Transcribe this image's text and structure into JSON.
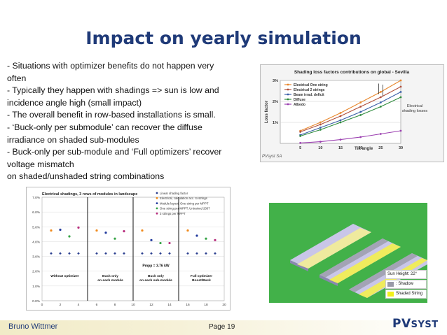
{
  "slide": {
    "title": "Impact on yearly simulation",
    "bullets": [
      "- Situations with optimizer benefits do not happen very",
      "often",
      "- Typically they happen with shadings => sun is low and",
      "incidence angle high (small impact)",
      "- The overall benefit in row-based installations is small.",
      "- ‘Buck-only per submodule’ can recover the diffuse",
      "irradiance on shaded sub-modules",
      "- Buck-only per sub-module and ‘Full optimizers’ recover",
      "voltage mismatch",
      "on shaded/unshaded string combinations"
    ],
    "footer": {
      "author": "Bruno Wittmer",
      "page": "Page 19"
    },
    "logo": {
      "pv": "PV",
      "syst": "SYST"
    }
  },
  "chart_data": [
    {
      "type": "line",
      "title": "Shading loss factors contributions on global - Sevilla",
      "xlabel": "Tilt angle",
      "ylabel": "Loss factor",
      "x": [
        5,
        10,
        15,
        20,
        25,
        30
      ],
      "xlim": [
        0,
        30
      ],
      "ylim": [
        0,
        3
      ],
      "xticks": [
        "5",
        "10",
        "15",
        "20",
        "25",
        "30"
      ],
      "yticks": [
        "1%",
        "2%",
        "3%"
      ],
      "watermark": "PVsyst SA",
      "annotation": [
        "Electrical",
        "shading losses"
      ],
      "series": [
        {
          "name": "Electrical One string",
          "color": "#e8862a",
          "values": [
            0.6,
            1.0,
            1.45,
            1.95,
            2.45,
            3.0
          ]
        },
        {
          "name": "Electrical 2 strings",
          "color": "#b0503c",
          "values": [
            0.55,
            0.9,
            1.3,
            1.75,
            2.2,
            2.7
          ]
        },
        {
          "name": "Beam irrad. deficit",
          "color": "#3a5fa8",
          "values": [
            0.4,
            0.75,
            1.1,
            1.5,
            1.95,
            2.45
          ]
        },
        {
          "name": "Diffuse",
          "color": "#2e8b3c",
          "values": [
            0.35,
            0.65,
            1.0,
            1.35,
            1.75,
            2.2
          ]
        },
        {
          "name": "Albedo",
          "color": "#9b3fb0",
          "values": [
            0.02,
            0.08,
            0.18,
            0.3,
            0.45,
            0.6
          ]
        }
      ]
    },
    {
      "type": "scatter",
      "title": "Electrical shadings, 3 rows of modules  in  landscape",
      "xlim": [
        0,
        20
      ],
      "ylim": [
        0,
        7
      ],
      "xticks": [
        "0",
        "2",
        "4",
        "6",
        "8",
        "10",
        "12",
        "14",
        "16",
        "18",
        "20"
      ],
      "yticks": [
        "0.0%",
        "1.0%",
        "2.0%",
        "3.0%",
        "4.0%",
        "5.0%",
        "6.0%",
        "7.0%"
      ],
      "group_labels": [
        "Without optimizer",
        "Buck only on each module",
        "Buck only on each sub-module",
        "Full optimizer Boost/Buck"
      ],
      "annotation": "Pmpp = 3.76 kW",
      "series": [
        {
          "name": "Linear shading factor",
          "color": "#2a3f8f",
          "x": [
            1,
            2,
            3,
            4,
            6,
            7,
            8,
            9,
            11,
            12,
            13,
            14,
            16,
            17,
            18,
            19
          ],
          "y": [
            3.2,
            3.2,
            3.2,
            3.2,
            3.2,
            3.2,
            3.2,
            3.2,
            3.2,
            3.2,
            3.2,
            3.2,
            3.2,
            3.2,
            3.2,
            3.2
          ]
        },
        {
          "name": "Electrical, calculation acc. to strings",
          "color": "#f08a1c",
          "x": [
            1,
            6,
            11,
            16
          ],
          "y": [
            4.75,
            4.75,
            4.75,
            4.75
          ]
        },
        {
          "name": "Module layout, One string per MPPT",
          "color": "#233b9e",
          "x": [
            2,
            7,
            12,
            17
          ],
          "y": [
            4.8,
            4.6,
            4.1,
            4.4
          ]
        },
        {
          "name": "One string per MPPT, Untrained 2007",
          "color": "#36a446",
          "x": [
            3,
            8,
            13,
            18
          ],
          "y": [
            4.35,
            4.2,
            3.9,
            4.2
          ]
        },
        {
          "name": "3 strings per MPPT",
          "color": "#b82f7e",
          "x": [
            4,
            9,
            14,
            19
          ],
          "y": [
            4.95,
            4.7,
            3.9,
            4.1
          ]
        }
      ]
    }
  ],
  "sun_legend": {
    "title": "Sun Height: 22°",
    "items": [
      {
        "label": ": Shadow",
        "color": "#9a9aa8"
      },
      {
        "label": "Shaded String",
        "color": "#f3f01c"
      }
    ]
  }
}
